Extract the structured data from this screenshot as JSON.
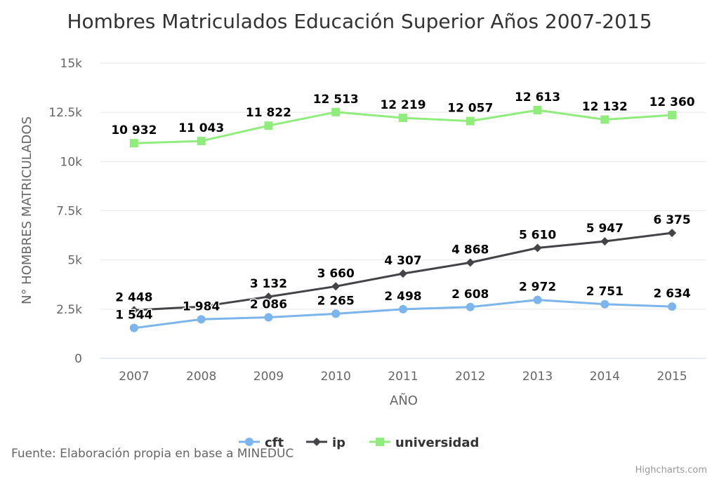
{
  "chart_data": {
    "type": "line",
    "title": "Hombres Matriculados Educación Superior Años 2007-2015",
    "xlabel": "AÑO",
    "ylabel": "N° HOMBRES MATRICULADOS",
    "categories": [
      "2007",
      "2008",
      "2009",
      "2010",
      "2011",
      "2012",
      "2013",
      "2014",
      "2015"
    ],
    "ylim": [
      0,
      15000
    ],
    "yticks": [
      0,
      2500,
      5000,
      7500,
      10000,
      12500,
      15000
    ],
    "ytick_labels": [
      "0",
      "2.5k",
      "5k",
      "7.5k",
      "10k",
      "12.5k",
      "15k"
    ],
    "grid": true,
    "legend_position": "bottom",
    "series": [
      {
        "name": "cft",
        "color": "#7cb5ec",
        "marker": "circle",
        "values": [
          1544,
          1984,
          2086,
          2265,
          2498,
          2608,
          2972,
          2751,
          2634
        ],
        "labels": [
          "1 544",
          "1 984",
          "2 086",
          "2 265",
          "2 498",
          "2 608",
          "2 972",
          "2 751",
          "2 634"
        ]
      },
      {
        "name": "ip",
        "color": "#434348",
        "marker": "diamond",
        "values": [
          2448,
          2630,
          3132,
          3660,
          4307,
          4868,
          5610,
          5947,
          6375
        ],
        "labels": [
          "2 448",
          "",
          "3 132",
          "3 660",
          "4 307",
          "4 868",
          "5 610",
          "5 947",
          "6 375"
        ]
      },
      {
        "name": "universidad",
        "color": "#90ed7d",
        "marker": "square",
        "values": [
          10932,
          11043,
          11822,
          12513,
          12219,
          12057,
          12613,
          12132,
          12360
        ],
        "labels": [
          "10 932",
          "11 043",
          "11 822",
          "12 513",
          "12 219",
          "12 057",
          "12 613",
          "12 132",
          "12 360"
        ]
      }
    ]
  },
  "source": "Fuente: Elaboración propia en base a MINEDUC",
  "credits": "Highcharts.com"
}
